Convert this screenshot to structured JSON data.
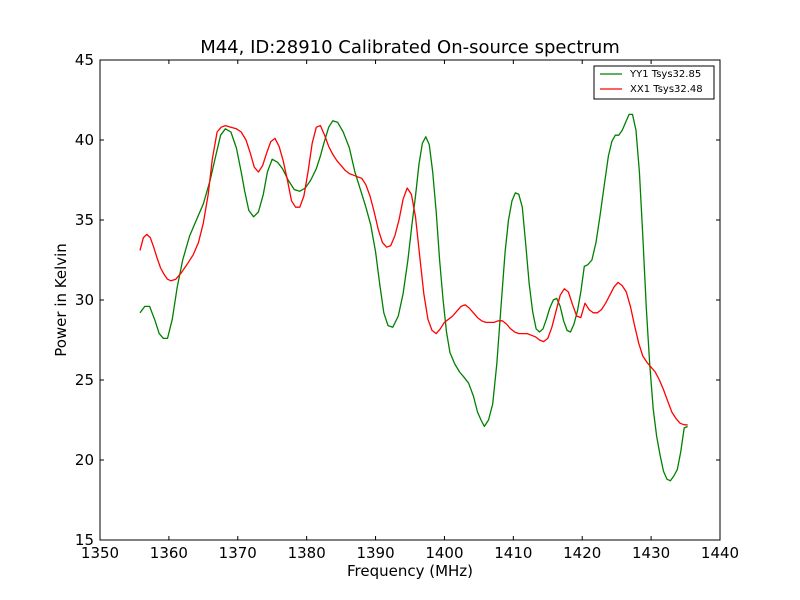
{
  "chart_data": {
    "type": "line",
    "title": "M44, ID:28910 Calibrated On-source spectrum",
    "xlabel": "Frequency (MHz)",
    "ylabel": "Power in Kelvin",
    "xlim": [
      1350,
      1440
    ],
    "ylim": [
      15,
      45
    ],
    "xticks": [
      "1350",
      "1360",
      "1370",
      "1380",
      "1390",
      "1400",
      "1410",
      "1420",
      "1430",
      "1440"
    ],
    "yticks": [
      "15",
      "20",
      "25",
      "30",
      "35",
      "40",
      "45"
    ],
    "grid": false,
    "legend_position": "top-right",
    "series": [
      {
        "name": "YY1 Tsys32.85",
        "color": "#008000",
        "x": [
          1355.8,
          1356.5,
          1357.2,
          1358.0,
          1358.6,
          1359.2,
          1359.8,
          1360.5,
          1361.2,
          1362.0,
          1363.0,
          1364.0,
          1365.0,
          1366.0,
          1366.8,
          1367.5,
          1368.2,
          1369.0,
          1369.8,
          1370.5,
          1371.0,
          1371.6,
          1372.3,
          1373.0,
          1373.7,
          1374.3,
          1375.0,
          1375.8,
          1376.5,
          1377.3,
          1378.2,
          1379.0,
          1379.8,
          1380.6,
          1381.4,
          1382.0,
          1382.5,
          1383.2,
          1383.8,
          1384.5,
          1385.3,
          1386.2,
          1387.0,
          1387.8,
          1388.6,
          1389.3,
          1390.0,
          1390.6,
          1391.2,
          1391.8,
          1392.5,
          1393.3,
          1394.0,
          1394.7,
          1395.3,
          1395.8,
          1396.3,
          1396.8,
          1397.3,
          1397.8,
          1398.3,
          1398.8,
          1399.3,
          1399.8,
          1400.3,
          1400.8,
          1401.5,
          1402.2,
          1402.8,
          1403.5,
          1404.2,
          1404.8,
          1405.3,
          1405.8,
          1406.4,
          1407.0,
          1407.6,
          1408.2,
          1408.8,
          1409.3,
          1409.8,
          1410.3,
          1410.8,
          1411.3,
          1411.8,
          1412.3,
          1412.8,
          1413.3,
          1413.8,
          1414.3,
          1414.8,
          1415.3,
          1415.8,
          1416.3,
          1416.8,
          1417.3,
          1417.8,
          1418.3,
          1418.8,
          1419.3,
          1419.8,
          1420.3,
          1420.8,
          1421.4,
          1422.0,
          1422.6,
          1423.2,
          1423.8,
          1424.3,
          1424.8,
          1425.3,
          1425.8,
          1426.3,
          1426.8,
          1427.3,
          1427.8,
          1428.3,
          1428.8,
          1429.3,
          1429.8,
          1430.3,
          1430.8,
          1431.3,
          1431.8,
          1432.3,
          1432.8,
          1433.3,
          1433.8,
          1434.3,
          1434.8,
          1435.3
        ],
        "y": [
          29.2,
          29.6,
          29.6,
          28.7,
          27.9,
          27.6,
          27.6,
          28.8,
          30.8,
          32.5,
          34.0,
          35.0,
          36.0,
          37.5,
          39.0,
          40.3,
          40.7,
          40.5,
          39.5,
          38.0,
          36.8,
          35.6,
          35.2,
          35.5,
          36.6,
          38.0,
          38.8,
          38.6,
          38.2,
          37.5,
          36.9,
          36.8,
          37.0,
          37.5,
          38.2,
          39.0,
          39.8,
          40.8,
          41.2,
          41.1,
          40.5,
          39.5,
          38.0,
          36.9,
          35.8,
          34.7,
          33.0,
          31.0,
          29.2,
          28.4,
          28.3,
          29.0,
          30.4,
          32.5,
          34.8,
          36.5,
          38.5,
          39.8,
          40.2,
          39.7,
          38.0,
          35.5,
          32.5,
          30.0,
          28.0,
          26.7,
          26.0,
          25.5,
          25.2,
          24.8,
          24.0,
          23.0,
          22.5,
          22.1,
          22.5,
          23.5,
          26.0,
          29.5,
          33.0,
          35.0,
          36.2,
          36.7,
          36.6,
          35.8,
          33.5,
          31.0,
          29.3,
          28.2,
          28.0,
          28.2,
          28.8,
          29.5,
          30.0,
          30.1,
          29.6,
          28.7,
          28.1,
          28.0,
          28.5,
          29.3,
          30.5,
          32.1,
          32.2,
          32.5,
          33.6,
          35.3,
          37.2,
          39.0,
          39.9,
          40.3,
          40.3,
          40.6,
          41.1,
          41.6,
          41.6,
          40.6,
          38.0,
          34.0,
          29.5,
          26.0,
          23.2,
          21.5,
          20.3,
          19.3,
          18.8,
          18.7,
          19.0,
          19.4,
          20.5,
          22.0,
          22.1
        ]
      },
      {
        "name": "XX1 Tsys32.48",
        "color": "#ff0000",
        "x": [
          1355.8,
          1356.3,
          1356.8,
          1357.3,
          1357.8,
          1358.3,
          1358.8,
          1359.3,
          1359.8,
          1360.3,
          1361.0,
          1361.8,
          1362.6,
          1363.5,
          1364.3,
          1365.0,
          1365.7,
          1366.3,
          1367.0,
          1367.6,
          1368.2,
          1369.0,
          1369.8,
          1370.5,
          1371.2,
          1371.8,
          1372.4,
          1373.0,
          1373.6,
          1374.2,
          1374.8,
          1375.4,
          1376.0,
          1376.6,
          1377.2,
          1377.8,
          1378.4,
          1379.0,
          1379.6,
          1380.2,
          1380.8,
          1381.4,
          1382.0,
          1382.6,
          1383.2,
          1383.8,
          1384.4,
          1385.0,
          1385.6,
          1386.2,
          1386.8,
          1387.4,
          1388.0,
          1388.6,
          1389.2,
          1389.8,
          1390.4,
          1391.0,
          1391.6,
          1392.2,
          1392.8,
          1393.4,
          1394.0,
          1394.6,
          1395.2,
          1395.8,
          1396.4,
          1397.0,
          1397.6,
          1398.2,
          1398.8,
          1399.4,
          1400.0,
          1400.6,
          1401.2,
          1401.8,
          1402.4,
          1403.0,
          1403.6,
          1404.2,
          1404.8,
          1405.4,
          1406.0,
          1406.6,
          1407.2,
          1407.8,
          1408.4,
          1409.0,
          1409.6,
          1410.2,
          1410.8,
          1411.4,
          1412.0,
          1412.6,
          1413.2,
          1413.8,
          1414.4,
          1415.0,
          1415.6,
          1416.2,
          1416.8,
          1417.4,
          1418.0,
          1418.6,
          1419.2,
          1419.8,
          1420.4,
          1421.0,
          1421.6,
          1422.2,
          1422.8,
          1423.4,
          1424.0,
          1424.6,
          1425.2,
          1425.8,
          1426.4,
          1427.0,
          1427.6,
          1428.2,
          1428.8,
          1429.4,
          1430.0,
          1430.6,
          1431.2,
          1431.8,
          1432.4,
          1433.0,
          1433.6,
          1434.2,
          1434.8,
          1435.3
        ],
        "y": [
          33.1,
          33.9,
          34.1,
          33.9,
          33.3,
          32.6,
          32.0,
          31.6,
          31.3,
          31.2,
          31.3,
          31.7,
          32.2,
          32.8,
          33.6,
          34.8,
          36.6,
          38.8,
          40.5,
          40.8,
          40.9,
          40.8,
          40.7,
          40.5,
          40.0,
          39.2,
          38.3,
          38.0,
          38.4,
          39.2,
          39.9,
          40.1,
          39.6,
          38.7,
          37.5,
          36.2,
          35.8,
          35.8,
          36.5,
          38.0,
          39.8,
          40.8,
          40.9,
          40.3,
          39.6,
          39.1,
          38.7,
          38.4,
          38.1,
          37.9,
          37.8,
          37.7,
          37.6,
          37.2,
          36.5,
          35.5,
          34.4,
          33.6,
          33.3,
          33.4,
          34.0,
          35.0,
          36.3,
          37.0,
          36.6,
          35.2,
          32.8,
          30.4,
          28.8,
          28.1,
          27.9,
          28.2,
          28.6,
          28.8,
          29.0,
          29.3,
          29.6,
          29.7,
          29.5,
          29.2,
          28.9,
          28.7,
          28.6,
          28.6,
          28.6,
          28.7,
          28.7,
          28.5,
          28.2,
          28.0,
          27.9,
          27.9,
          27.9,
          27.8,
          27.7,
          27.5,
          27.4,
          27.6,
          28.3,
          29.3,
          30.3,
          30.7,
          30.5,
          29.7,
          29.0,
          28.9,
          29.8,
          29.4,
          29.2,
          29.2,
          29.4,
          29.8,
          30.3,
          30.8,
          31.1,
          30.9,
          30.5,
          29.6,
          28.4,
          27.3,
          26.5,
          26.1,
          25.8,
          25.5,
          25.0,
          24.4,
          23.7,
          23.0,
          22.6,
          22.3,
          22.2,
          22.2
        ]
      }
    ]
  }
}
